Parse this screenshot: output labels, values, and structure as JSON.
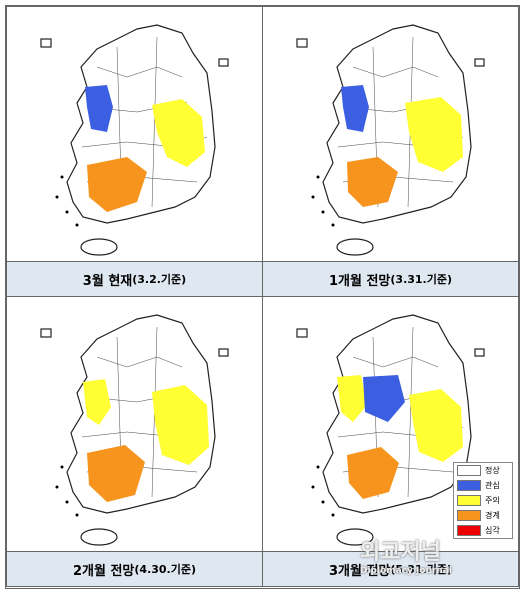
{
  "panels": [
    {
      "title": "3월 현재",
      "subtitle": "(3.2.기준)"
    },
    {
      "title": "1개월 전망",
      "subtitle": "(3.31.기준)"
    },
    {
      "title": "2개월 전망",
      "subtitle": "(4.30.기준)"
    },
    {
      "title": "3개월 전망",
      "subtitle": "(5.31.기준)"
    }
  ],
  "legend": [
    "정상",
    "관심",
    "주의",
    "경계",
    "심각"
  ],
  "watermark": {
    "title": "외교저널",
    "subtitle": "Diplomacy Journal"
  }
}
